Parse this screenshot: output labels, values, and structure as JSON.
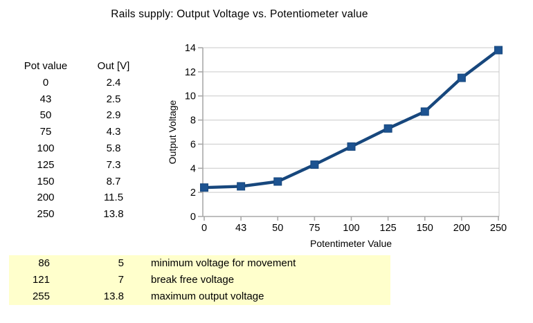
{
  "title": "Rails supply: Output Voltage vs. Potentiometer value",
  "table": {
    "headers": [
      "Pot value",
      "Out [V]"
    ],
    "rows": [
      [
        "0",
        "2.4"
      ],
      [
        "43",
        "2.5"
      ],
      [
        "50",
        "2.9"
      ],
      [
        "75",
        "4.3"
      ],
      [
        "100",
        "5.8"
      ],
      [
        "125",
        "7.3"
      ],
      [
        "150",
        "8.7"
      ],
      [
        "200",
        "11.5"
      ],
      [
        "250",
        "13.8"
      ]
    ]
  },
  "chart_data": {
    "type": "line",
    "title": "Rails supply: Output Voltage vs. Potentiometer value",
    "categories": [
      "0",
      "43",
      "50",
      "75",
      "100",
      "125",
      "150",
      "200",
      "250"
    ],
    "values": [
      2.4,
      2.5,
      2.9,
      4.3,
      5.8,
      7.3,
      8.7,
      11.5,
      13.8
    ],
    "xlabel": "Potentimeter Value",
    "ylabel": "Output Voltage",
    "ylim": [
      0,
      14
    ],
    "ytick_step": 2,
    "grid": true,
    "legend": "none",
    "marker": "square",
    "series_color": "#17477d",
    "marker_color": "#1d5391",
    "grid_color": "#c9c9c9",
    "axis_color": "#a8a8a8"
  },
  "annotations": {
    "bg_color": "#ffffcc",
    "rows": [
      {
        "pot": "86",
        "volts": "5",
        "label": "minimum voltage for movement"
      },
      {
        "pot": "121",
        "volts": "7",
        "label": "break free voltage"
      },
      {
        "pot": "255",
        "volts": "13.8",
        "label": "maximum output voltage"
      }
    ]
  }
}
